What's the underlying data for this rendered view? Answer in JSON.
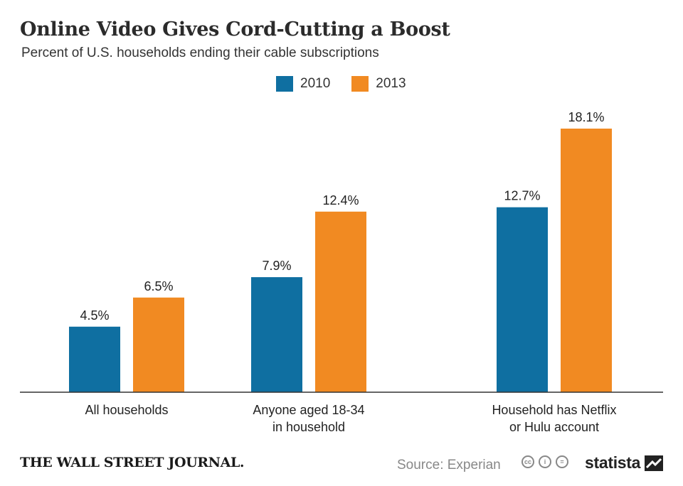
{
  "header": {
    "title": "Online Video Gives Cord-Cutting a Boost",
    "subtitle": "Percent of U.S. households ending their cable subscriptions"
  },
  "colors": {
    "series_2010": "#0f6fa1",
    "series_2013": "#f18a22",
    "axis": "#333333"
  },
  "chart_data": {
    "type": "bar",
    "title": "Online Video Gives Cord-Cutting a Boost",
    "subtitle": "Percent of U.S. households ending their cable subscriptions",
    "categories": [
      [
        "All households"
      ],
      [
        "Anyone aged 18-34",
        "in household"
      ],
      [
        "Household has Netflix",
        "or Hulu account"
      ]
    ],
    "series": [
      {
        "name": "2010",
        "values": [
          4.5,
          7.9,
          12.7
        ],
        "labels": [
          "4.5%",
          "7.9%",
          "12.7%"
        ]
      },
      {
        "name": "2013",
        "values": [
          6.5,
          12.4,
          18.1
        ],
        "labels": [
          "6.5%",
          "12.4%",
          "18.1%"
        ]
      }
    ],
    "ylim": [
      0,
      18.1
    ],
    "legend": "top-center",
    "grid": false
  },
  "footer": {
    "publisher": "THE WALL STREET JOURNAL.",
    "source": "Source: Experian",
    "license_icons": [
      "cc",
      "i",
      "="
    ],
    "brand": "statista"
  }
}
